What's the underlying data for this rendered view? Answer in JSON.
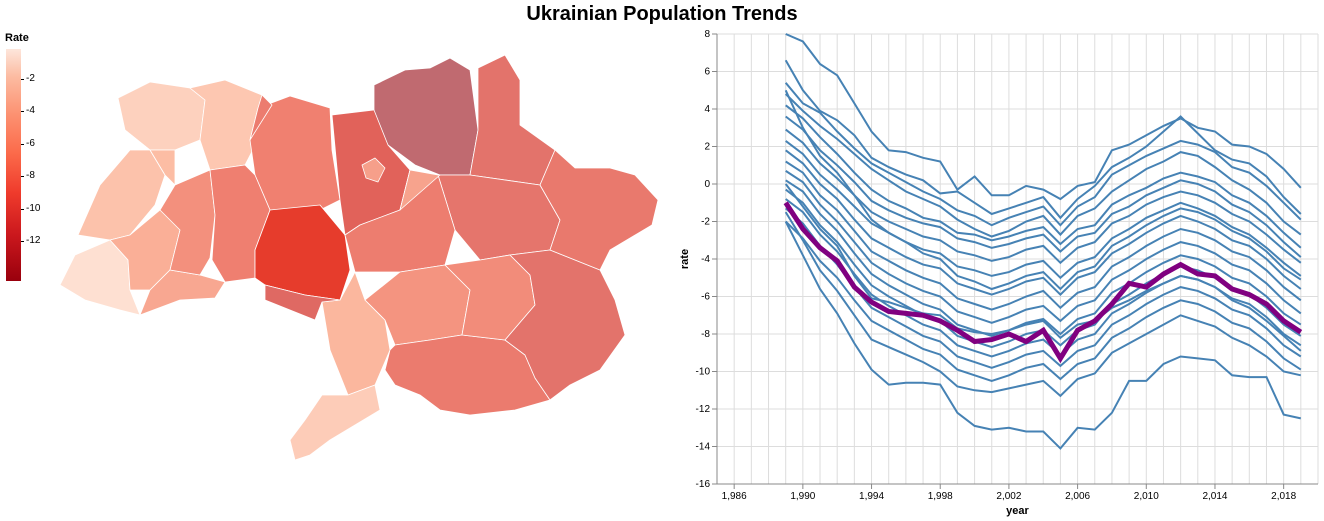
{
  "title": "Ukrainian Population Trends",
  "legend": {
    "title": "Rate",
    "ticks": [
      "-2",
      "-4",
      "-6",
      "-8",
      "-10",
      "-12"
    ]
  },
  "colors": {
    "line": "#4682b4",
    "highlight": "#800080",
    "grid": "#dddddd"
  },
  "chart_data": {
    "type": "line",
    "title": "",
    "xlabel": "year",
    "ylabel": "rate",
    "xlim": [
      1985,
      2020
    ],
    "ylim": [
      -16,
      8
    ],
    "x_ticks": [
      "1,986",
      "1,990",
      "1,994",
      "1,998",
      "2,002",
      "2,006",
      "2,010",
      "2,014",
      "2,018"
    ],
    "y_ticks": [
      "8",
      "6",
      "4",
      "2",
      "0",
      "-2",
      "-4",
      "-6",
      "-8",
      "-10",
      "-12",
      "-14",
      "-16"
    ],
    "x": [
      1989,
      1990,
      1991,
      1992,
      1993,
      1994,
      1995,
      1996,
      1997,
      1998,
      1999,
      2000,
      2001,
      2002,
      2003,
      2004,
      2005,
      2006,
      2007,
      2008,
      2009,
      2010,
      2011,
      2012,
      2013,
      2014,
      2015,
      2016,
      2017,
      2018,
      2019
    ],
    "series": [
      {
        "values": [
          8.0,
          7.6,
          6.4,
          5.8,
          4.3,
          2.8,
          1.8,
          1.7,
          1.4,
          1.2,
          -0.3,
          0.4,
          -0.6,
          -0.6,
          -0.1,
          -0.3,
          -0.8,
          -0.1,
          0.1,
          1.8,
          2.1,
          2.6,
          3.1,
          3.5,
          3.0,
          2.8,
          2.1,
          2.0,
          1.6,
          0.8,
          -0.2
        ]
      },
      {
        "values": [
          6.6,
          5.0,
          3.9,
          3.4,
          2.6,
          1.4,
          0.9,
          0.5,
          0.2,
          -0.5,
          -0.4,
          -1.0,
          -1.6,
          -1.3,
          -1.0,
          -0.7,
          -1.8,
          -0.8,
          -0.1,
          0.9,
          1.4,
          2.0,
          2.8,
          3.6,
          2.7,
          1.8,
          1.3,
          1.1,
          0.4,
          -0.7,
          -1.6
        ]
      },
      {
        "values": [
          5.4,
          4.3,
          3.8,
          2.8,
          1.9,
          1.1,
          0.6,
          0.1,
          -0.4,
          -0.8,
          -1.4,
          -1.7,
          -2.2,
          -1.8,
          -1.5,
          -1.2,
          -2.2,
          -1.2,
          -0.7,
          0.5,
          1.0,
          1.5,
          1.9,
          2.3,
          2.1,
          1.7,
          0.9,
          0.6,
          -0.1,
          -1.0,
          -1.9
        ]
      },
      {
        "values": [
          4.8,
          3.9,
          3.1,
          2.4,
          1.6,
          0.8,
          0.2,
          -0.4,
          -0.8,
          -1.2,
          -1.9,
          -2.4,
          -2.8,
          -2.5,
          -2.0,
          -1.7,
          -2.7,
          -1.7,
          -1.3,
          -0.4,
          0.2,
          0.8,
          1.2,
          1.7,
          1.5,
          0.9,
          0.2,
          -0.3,
          -1.0,
          -2.0,
          -2.7
        ]
      },
      {
        "values": [
          4.2,
          3.5,
          2.5,
          1.6,
          0.6,
          -0.3,
          -0.9,
          -1.3,
          -1.8,
          -2.0,
          -2.6,
          -2.7,
          -3.0,
          -2.8,
          -2.5,
          -2.3,
          -3.2,
          -2.4,
          -2.2,
          -1.1,
          -0.6,
          -0.2,
          0.3,
          0.6,
          0.4,
          0.1,
          -0.6,
          -1.0,
          -1.7,
          -2.6,
          -3.4
        ]
      },
      {
        "values": [
          3.6,
          2.9,
          1.8,
          1.0,
          0.1,
          -0.9,
          -1.4,
          -1.8,
          -2.1,
          -2.3,
          -2.9,
          -3.1,
          -3.4,
          -3.2,
          -2.9,
          -2.7,
          -3.6,
          -2.8,
          -2.6,
          -1.6,
          -1.2,
          -0.6,
          -0.2,
          0.2,
          0.0,
          -0.4,
          -1.1,
          -1.5,
          -2.2,
          -3.1,
          -3.9
        ]
      },
      {
        "values": [
          2.9,
          2.2,
          1.1,
          0.3,
          -0.6,
          -1.5,
          -2.0,
          -2.4,
          -2.8,
          -3.0,
          -3.6,
          -3.8,
          -4.1,
          -3.9,
          -3.5,
          -3.3,
          -4.2,
          -3.4,
          -3.1,
          -2.1,
          -1.7,
          -1.1,
          -0.7,
          -0.4,
          -0.6,
          -1.0,
          -1.6,
          -2.0,
          -2.7,
          -3.5,
          -4.2
        ]
      },
      {
        "values": [
          2.3,
          1.6,
          0.5,
          -0.3,
          -1.2,
          -2.1,
          -2.6,
          -3.1,
          -3.5,
          -3.7,
          -4.4,
          -4.6,
          -4.9,
          -4.7,
          -4.3,
          -4.1,
          -5.0,
          -4.2,
          -3.9,
          -2.9,
          -2.4,
          -1.8,
          -1.4,
          -1.0,
          -1.3,
          -1.7,
          -2.3,
          -2.7,
          -3.4,
          -4.2,
          -4.9
        ]
      },
      {
        "values": [
          1.8,
          1.1,
          0.0,
          -0.8,
          -1.9,
          -2.9,
          -3.4,
          -3.9,
          -4.3,
          -4.5,
          -5.3,
          -5.6,
          -5.9,
          -5.6,
          -5.2,
          -5.0,
          -5.9,
          -5.0,
          -4.7,
          -3.7,
          -3.2,
          -2.6,
          -2.1,
          -1.7,
          -2.0,
          -2.4,
          -3.0,
          -3.3,
          -4.0,
          -4.9,
          -5.6
        ]
      },
      {
        "values": [
          1.2,
          0.6,
          -0.6,
          -1.4,
          -2.5,
          -3.6,
          -4.1,
          -4.6,
          -5.0,
          -5.3,
          -6.1,
          -6.4,
          -6.7,
          -6.4,
          -6.0,
          -5.7,
          -6.6,
          -5.8,
          -5.5,
          -4.4,
          -3.9,
          -3.3,
          -2.8,
          -2.4,
          -2.6,
          -3.0,
          -3.6,
          -3.9,
          -4.6,
          -5.5,
          -6.2
        ]
      },
      {
        "values": [
          0.7,
          0.1,
          -1.1,
          -2.0,
          -3.1,
          -4.2,
          -4.8,
          -5.3,
          -5.7,
          -6.0,
          -6.8,
          -7.1,
          -7.4,
          -7.1,
          -6.7,
          -6.5,
          -7.3,
          -6.5,
          -6.2,
          -5.1,
          -4.6,
          -4.0,
          -3.5,
          -3.1,
          -3.3,
          -3.7,
          -4.3,
          -4.6,
          -5.3,
          -6.2,
          -6.9
        ]
      },
      {
        "values": [
          0.2,
          -0.4,
          -1.6,
          -2.5,
          -3.7,
          -4.8,
          -5.4,
          -5.9,
          -6.4,
          -6.7,
          -7.5,
          -7.8,
          -8.1,
          -7.8,
          -7.4,
          -7.2,
          -8.0,
          -7.2,
          -6.9,
          -5.8,
          -5.3,
          -4.7,
          -4.2,
          -3.8,
          -4.0,
          -4.4,
          -5.0,
          -5.3,
          -6.0,
          -6.9,
          -7.5
        ]
      },
      {
        "values": [
          -0.3,
          -1.0,
          -2.2,
          -3.1,
          -4.3,
          -5.4,
          -6.0,
          -6.5,
          -7.0,
          -7.3,
          -8.1,
          -8.4,
          -8.7,
          -8.4,
          -8.0,
          -7.8,
          -8.6,
          -7.8,
          -7.5,
          -6.4,
          -5.9,
          -5.3,
          -4.8,
          -4.4,
          -4.6,
          -5.0,
          -5.6,
          -5.9,
          -6.6,
          -7.5,
          -8.1
        ]
      },
      {
        "values": [
          -0.8,
          -1.5,
          -2.7,
          -3.6,
          -4.8,
          -5.9,
          -6.5,
          -7.0,
          -7.5,
          -7.8,
          -8.6,
          -8.9,
          -9.2,
          -8.9,
          -8.5,
          -8.3,
          -9.1,
          -8.3,
          -8.0,
          -6.9,
          -6.4,
          -5.8,
          -5.3,
          -4.9,
          -5.1,
          -5.5,
          -6.1,
          -6.4,
          -7.1,
          -8.0,
          -8.6
        ]
      },
      {
        "values": [
          -1.3,
          -2.1,
          -3.3,
          -4.3,
          -5.5,
          -6.6,
          -7.1,
          -7.6,
          -8.1,
          -8.4,
          -9.2,
          -9.5,
          -9.8,
          -9.5,
          -9.1,
          -8.9,
          -9.7,
          -8.9,
          -8.6,
          -7.5,
          -7.0,
          -6.4,
          -5.9,
          -5.5,
          -5.7,
          -6.1,
          -6.7,
          -7.0,
          -7.7,
          -8.6,
          -9.2
        ]
      },
      {
        "values": [
          -2.0,
          -2.9,
          -4.1,
          -5.0,
          -6.2,
          -7.3,
          -7.8,
          -8.3,
          -8.8,
          -9.1,
          -9.9,
          -10.2,
          -10.5,
          -10.2,
          -9.8,
          -9.6,
          -10.4,
          -9.6,
          -9.3,
          -8.2,
          -7.7,
          -7.1,
          -6.6,
          -6.2,
          -6.4,
          -6.8,
          -7.4,
          -7.7,
          -8.4,
          -9.3,
          -9.9
        ]
      },
      {
        "values": [
          -1.5,
          -3.0,
          -4.6,
          -5.7,
          -7.0,
          -8.3,
          -8.7,
          -9.1,
          -9.5,
          -10.0,
          -10.8,
          -11.0,
          -11.1,
          -10.9,
          -10.7,
          -10.5,
          -11.3,
          -10.4,
          -10.1,
          -9.0,
          -8.5,
          -8.0,
          -7.5,
          -7.0,
          -7.3,
          -7.6,
          -8.2,
          -8.6,
          -9.2,
          -10.0,
          -10.2
        ]
      },
      {
        "values": [
          -2.0,
          -3.8,
          -5.6,
          -6.9,
          -8.5,
          -9.9,
          -10.7,
          -10.6,
          -10.6,
          -10.7,
          -12.2,
          -12.9,
          -13.1,
          -13.0,
          -13.2,
          -13.2,
          -14.1,
          -13.0,
          -13.1,
          -12.2,
          -10.5,
          -10.5,
          -9.6,
          -9.2,
          -9.3,
          -9.4,
          -10.2,
          -10.3,
          -10.3,
          -12.3,
          -12.5
        ]
      },
      {
        "values": [
          5.0,
          3.0,
          1.5,
          0.6,
          -0.6,
          -1.9,
          -2.6,
          -3.1,
          -3.7,
          -4.0,
          -4.9,
          -5.2,
          -5.6,
          -5.3,
          -4.9,
          -4.7,
          -5.6,
          -4.7,
          -4.4,
          -3.3,
          -2.8,
          -2.2,
          -1.7,
          -1.3,
          -1.5,
          -1.9,
          -2.5,
          -2.9,
          -3.6,
          -4.5,
          -5.1
        ]
      },
      {
        "values": [
          0.0,
          -1.2,
          -2.4,
          -3.3,
          -4.9,
          -6.1,
          -6.3,
          -6.6,
          -6.9,
          -7.0,
          -7.7,
          -7.9,
          -8.0,
          -7.8,
          -7.5,
          -7.3,
          -8.2,
          -7.5,
          -7.3,
          -6.6,
          -6.2,
          -5.7,
          -5.3,
          -4.9,
          -5.1,
          -5.5,
          -6.2,
          -6.6,
          -7.3,
          -8.1,
          -8.9
        ]
      }
    ],
    "highlight": {
      "values": [
        -1.0,
        -2.4,
        -3.4,
        -4.1,
        -5.5,
        -6.3,
        -6.8,
        -6.9,
        -7.0,
        -7.3,
        -7.8,
        -8.4,
        -8.3,
        -8.0,
        -8.4,
        -7.8,
        -9.3,
        -7.8,
        -7.3,
        -6.4,
        -5.3,
        -5.5,
        -4.8,
        -4.3,
        -4.8,
        -4.9,
        -5.6,
        -5.9,
        -6.4,
        -7.3,
        -7.9
      ]
    }
  },
  "map_data": {
    "type": "choropleth",
    "legend_title": "Rate",
    "regions": [
      {
        "rate": -1.6
      },
      {
        "rate": -2.0
      },
      {
        "rate": -1.0
      },
      {
        "rate": -2.2
      },
      {
        "rate": -2.4
      },
      {
        "rate": -2.8
      },
      {
        "rate": -3.0
      },
      {
        "rate": -3.6
      },
      {
        "rate": -8.5
      },
      {
        "rate": -4.0
      },
      {
        "rate": -4.1
      },
      {
        "rate": -7.8
      },
      {
        "rate": -6.5
      },
      {
        "rate": -5.5
      },
      {
        "rate": -5.2
      },
      {
        "rate": -4.3
      },
      {
        "rate": -2.6
      },
      {
        "rate": -1.8
      },
      {
        "rate": -3.5
      },
      {
        "rate": -4.6
      },
      {
        "rate": -3.7
      },
      {
        "rate": -5.4
      },
      {
        "rate": -4.8
      },
      {
        "rate": -6.2
      },
      {
        "rate": -4.4
      },
      {
        "rate": -3.2
      },
      {
        "rate": -3.1
      }
    ]
  }
}
